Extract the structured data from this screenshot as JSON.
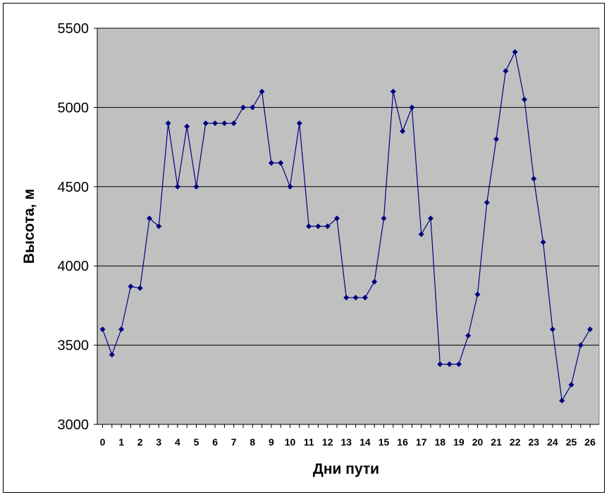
{
  "chart_data": {
    "type": "line",
    "xlabel": "Дни пути",
    "ylabel": "Высота, м",
    "ylim": [
      3000,
      5500
    ],
    "xlim": [
      0,
      26
    ],
    "yticks": [
      "3000",
      "3500",
      "4000",
      "4500",
      "5000",
      "5500"
    ],
    "xticks": [
      "0",
      "1",
      "2",
      "3",
      "4",
      "5",
      "6",
      "7",
      "8",
      "9",
      "10",
      "11",
      "12",
      "13",
      "14",
      "15",
      "16",
      "17",
      "18",
      "19",
      "20",
      "21",
      "22",
      "23",
      "24",
      "25",
      "26"
    ],
    "grid": "horizontal",
    "plot_background": "#c0c0c0",
    "series": [
      {
        "color": "#000080",
        "marker": "diamond",
        "x": [
          0,
          0.5,
          1,
          1.5,
          2,
          2.5,
          3,
          3.5,
          4,
          4.5,
          5,
          5.5,
          6,
          6.5,
          7,
          7.5,
          8,
          8.5,
          9,
          9.5,
          10,
          10.5,
          11,
          11.5,
          12,
          12.5,
          13,
          13.5,
          14,
          14.5,
          15,
          15.5,
          16,
          16.5,
          17,
          17.5,
          18,
          18.5,
          19,
          19.5,
          20,
          20.5,
          21,
          21.5,
          22,
          22.5,
          23,
          23.5,
          24,
          24.5,
          25,
          25.5,
          26
        ],
        "y": [
          3600,
          3440,
          3600,
          3870,
          3860,
          4300,
          4250,
          4900,
          4500,
          4880,
          4500,
          4900,
          4900,
          4900,
          4900,
          5000,
          5000,
          5100,
          4650,
          4650,
          4500,
          4900,
          4250,
          4250,
          4250,
          4300,
          3800,
          3800,
          3800,
          3900,
          4300,
          5100,
          4850,
          5000,
          4200,
          4300,
          3380,
          3380,
          3380,
          3560,
          3820,
          4400,
          4800,
          5230,
          5350,
          5050,
          4550,
          4150,
          3600,
          3150,
          3250,
          3500,
          3600
        ]
      }
    ]
  }
}
